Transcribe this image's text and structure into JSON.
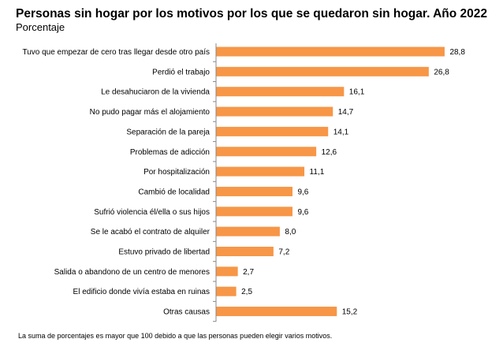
{
  "header": {
    "title": "Personas sin hogar por los motivos por los que se quedaron sin hogar. Año 2022",
    "subtitle": "Porcentaje"
  },
  "footnote": "La suma de porcentajes es mayor que 100 debido a que las personas pueden elegir varios motivos.",
  "colors": {
    "bar": "#F79646",
    "axis": "#888888"
  },
  "chart_data": {
    "type": "bar",
    "orientation": "horizontal",
    "title": "Personas sin hogar por los motivos por los que se quedaron sin hogar. Año 2022",
    "subtitle": "Porcentaje",
    "xlabel": "",
    "ylabel": "",
    "xlim": [
      0,
      30
    ],
    "grid": false,
    "categories": [
      "Tuvo que empezar de cero tras llegar desde otro país",
      "Perdió el trabajo",
      "Le desahuciaron de la vivienda",
      "No pudo pagar más el alojamiento",
      "Separación de la pareja",
      "Problemas de adicción",
      "Por hospitalización",
      "Cambió de localidad",
      "Sufrió violencia él/ella o sus hijos",
      "Se le acabó el contrato de alquiler",
      "Estuvo privado de libertad",
      "Salida o abandono de un centro de menores",
      "El edificio donde vivía estaba en ruinas",
      "Otras causas"
    ],
    "values": [
      28.8,
      26.8,
      16.1,
      14.7,
      14.1,
      12.6,
      11.1,
      9.6,
      9.6,
      8.0,
      7.2,
      2.7,
      2.5,
      15.2
    ],
    "value_labels": [
      "28,8",
      "26,8",
      "16,1",
      "14,7",
      "14,1",
      "12,6",
      "11,1",
      "9,6",
      "9,6",
      "8,0",
      "7,2",
      "2,7",
      "2,5",
      "15,2"
    ]
  }
}
